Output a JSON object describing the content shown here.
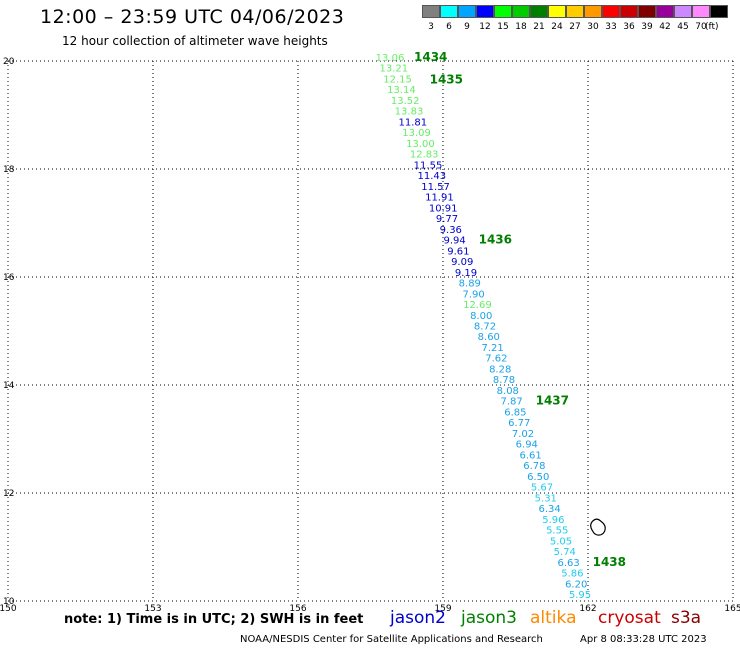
{
  "header": {
    "title": "12:00 – 23:59 UTC 04/06/2023",
    "subtitle": "12 hour collection of altimeter wave heights"
  },
  "legend": {
    "unit": "(ft)",
    "bins": [
      {
        "label": "3",
        "color": "#808080"
      },
      {
        "label": "6",
        "color": "#00ffff"
      },
      {
        "label": "9",
        "color": "#00a5ff"
      },
      {
        "label": "12",
        "color": "#0000ff"
      },
      {
        "label": "15",
        "color": "#00ff00"
      },
      {
        "label": "18",
        "color": "#00cc00"
      },
      {
        "label": "21",
        "color": "#008000"
      },
      {
        "label": "24",
        "color": "#ffff00"
      },
      {
        "label": "27",
        "color": "#ffcc00"
      },
      {
        "label": "30",
        "color": "#ff9900"
      },
      {
        "label": "33",
        "color": "#ff0000"
      },
      {
        "label": "36",
        "color": "#cc0000"
      },
      {
        "label": "39",
        "color": "#800000"
      },
      {
        "label": "42",
        "color": "#990099"
      },
      {
        "label": "45",
        "color": "#cc88ff"
      },
      {
        "label": "70",
        "color": "#ff88ff"
      },
      {
        "label": "",
        "color": "#000000"
      }
    ]
  },
  "map": {
    "lon_range": [
      150,
      165
    ],
    "lat_range": [
      10,
      20
    ],
    "lon_ticks": [
      "150",
      "153",
      "156",
      "159",
      "162",
      "165"
    ],
    "lat_ticks": [
      "10",
      "12",
      "14",
      "16",
      "18",
      "20"
    ],
    "grid_color": "#000000",
    "swh_readings": [
      {
        "v": "13.06",
        "color": "#66ee66"
      },
      {
        "v": "13.21",
        "color": "#66ee66"
      },
      {
        "v": "12.15",
        "color": "#66ee66"
      },
      {
        "v": "13.14",
        "color": "#66ee66"
      },
      {
        "v": "13.52",
        "color": "#66ee66"
      },
      {
        "v": "13.83",
        "color": "#66ee66"
      },
      {
        "v": "11.81",
        "color": "#0000cc"
      },
      {
        "v": "13.09",
        "color": "#66ee66"
      },
      {
        "v": "13.00",
        "color": "#66ee66"
      },
      {
        "v": "12.83",
        "color": "#66ee66"
      },
      {
        "v": "11.55",
        "color": "#0000cc"
      },
      {
        "v": "11.43",
        "color": "#0000cc"
      },
      {
        "v": "11.57",
        "color": "#0000cc"
      },
      {
        "v": "11.91",
        "color": "#0000cc"
      },
      {
        "v": "10.91",
        "color": "#0000cc"
      },
      {
        "v": "9.77",
        "color": "#0000cc"
      },
      {
        "v": "9.36",
        "color": "#0000cc"
      },
      {
        "v": "9.94",
        "color": "#0000cc"
      },
      {
        "v": "9.61",
        "color": "#0000cc"
      },
      {
        "v": "9.09",
        "color": "#0000cc"
      },
      {
        "v": "9.19",
        "color": "#0000cc"
      },
      {
        "v": "8.89",
        "color": "#1aa3e8"
      },
      {
        "v": "7.90",
        "color": "#1aa3e8"
      },
      {
        "v": "12.69",
        "color": "#66ee66"
      },
      {
        "v": "8.00",
        "color": "#1aa3e8"
      },
      {
        "v": "8.72",
        "color": "#1aa3e8"
      },
      {
        "v": "8.60",
        "color": "#1aa3e8"
      },
      {
        "v": "7.21",
        "color": "#1aa3e8"
      },
      {
        "v": "7.62",
        "color": "#1aa3e8"
      },
      {
        "v": "8.28",
        "color": "#1aa3e8"
      },
      {
        "v": "8.78",
        "color": "#1aa3e8"
      },
      {
        "v": "8.08",
        "color": "#1aa3e8"
      },
      {
        "v": "7.87",
        "color": "#1aa3e8"
      },
      {
        "v": "6.85",
        "color": "#1aa3e8"
      },
      {
        "v": "6.77",
        "color": "#1aa3e8"
      },
      {
        "v": "7.02",
        "color": "#1aa3e8"
      },
      {
        "v": "6.94",
        "color": "#1aa3e8"
      },
      {
        "v": "6.61",
        "color": "#1aa3e8"
      },
      {
        "v": "6.78",
        "color": "#1aa3e8"
      },
      {
        "v": "6.50",
        "color": "#1aa3e8"
      },
      {
        "v": "5.67",
        "color": "#22ccee"
      },
      {
        "v": "5.31",
        "color": "#22ccee"
      },
      {
        "v": "6.34",
        "color": "#1aa3e8"
      },
      {
        "v": "5.96",
        "color": "#22ccee"
      },
      {
        "v": "5.55",
        "color": "#22ccee"
      },
      {
        "v": "5.05",
        "color": "#22ccee"
      },
      {
        "v": "5.74",
        "color": "#22ccee"
      },
      {
        "v": "6.63",
        "color": "#1aa3e8"
      },
      {
        "v": "5.86",
        "color": "#22ccee"
      },
      {
        "v": "6.20",
        "color": "#1aa3e8"
      },
      {
        "v": "5.95",
        "color": "#22ccee"
      }
    ],
    "time_markers": [
      "1434",
      "1435",
      "1436",
      "1437",
      "1438"
    ],
    "marker_color": "#008000"
  },
  "footer": {
    "note": "note:  1) Time is in UTC;  2) SWH is in feet",
    "satellites": [
      {
        "name": "jason2",
        "color": "#0000cc"
      },
      {
        "name": "jason3",
        "color": "#008000"
      },
      {
        "name": "altika",
        "color": "#ff8800"
      },
      {
        "name": "cryosat",
        "color": "#cc0000"
      },
      {
        "name": "s3a",
        "color": "#880000"
      }
    ],
    "credit": "NOAA/NESDIS Center for Satellite Applications and Research",
    "timestamp": "Apr  8 08:33:28 UTC 2023"
  }
}
